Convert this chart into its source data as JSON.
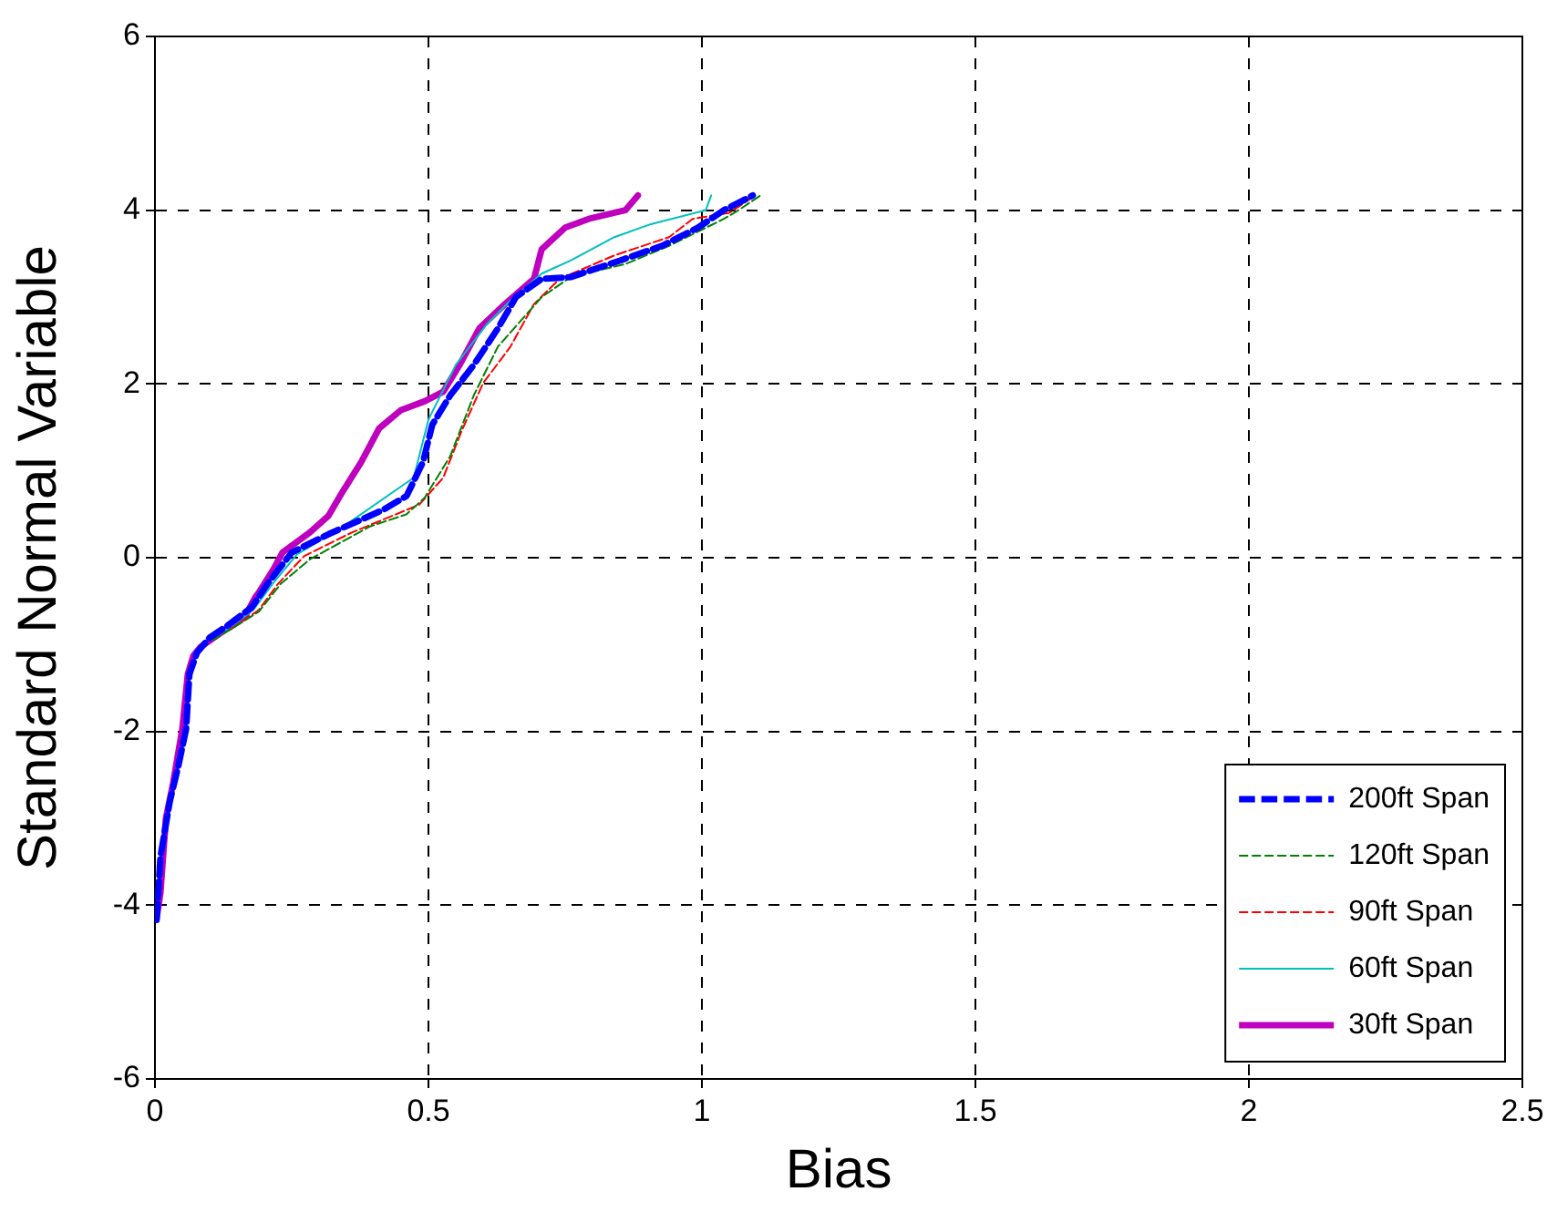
{
  "chart_data": {
    "type": "line",
    "xlabel": "Bias",
    "ylabel": "Standard Normal Variable",
    "xlim": [
      0,
      2.5
    ],
    "xticks": [
      0,
      0.5,
      1,
      1.5,
      2,
      2.5
    ],
    "ylim": [
      -6,
      6
    ],
    "yticks": [
      -6,
      -4,
      -2,
      0,
      2,
      4,
      6
    ],
    "grid": true,
    "legend": "bottom right",
    "marker": "none",
    "series": [
      {
        "name": "200ft Span",
        "color": "#0000ff",
        "line_style": "dashed",
        "x": [
          0.003,
          0.01,
          0.027,
          0.043,
          0.057,
          0.063,
          0.077,
          0.1,
          0.133,
          0.177,
          0.207,
          0.25,
          0.317,
          0.417,
          0.46,
          0.49,
          0.507,
          0.54,
          0.583,
          0.627,
          0.66,
          0.707,
          0.76,
          0.85,
          0.927,
          0.993,
          1.04,
          1.093
        ],
        "values": [
          -4.17,
          -3.44,
          -2.81,
          -2.39,
          -1.97,
          -1.34,
          -1.09,
          -0.92,
          -0.78,
          -0.57,
          -0.29,
          0.06,
          0.27,
          0.55,
          0.71,
          1.1,
          1.53,
          1.87,
          2.22,
          2.64,
          3.0,
          3.21,
          3.23,
          3.42,
          3.59,
          3.8,
          4.0,
          4.17
        ]
      },
      {
        "name": "120ft Span",
        "color": "#008000",
        "line_style": "dashed",
        "x": [
          0.105,
          0.14,
          0.19,
          0.23,
          0.283,
          0.393,
          0.46,
          0.493,
          0.54,
          0.583,
          0.627,
          0.707,
          0.76,
          0.86,
          0.94,
          1.04,
          1.067,
          1.107
        ],
        "values": [
          -0.95,
          -0.82,
          -0.62,
          -0.3,
          -0.02,
          0.36,
          0.5,
          0.69,
          1.17,
          1.87,
          2.43,
          3.0,
          3.23,
          3.38,
          3.59,
          3.9,
          4.0,
          4.17
        ]
      },
      {
        "name": "90ft Span",
        "color": "#ff0000",
        "line_style": "dashed",
        "x": [
          0.14,
          0.19,
          0.225,
          0.273,
          0.36,
          0.483,
          0.527,
          0.56,
          0.6,
          0.65,
          0.693,
          0.74,
          0.84,
          0.94,
          0.983,
          1.05,
          1.093
        ],
        "values": [
          -0.82,
          -0.6,
          -0.3,
          0.02,
          0.29,
          0.61,
          0.92,
          1.45,
          2.01,
          2.43,
          2.92,
          3.21,
          3.48,
          3.69,
          3.9,
          3.97,
          4.15
        ]
      },
      {
        "name": "60ft Span",
        "color": "#00bfbf",
        "line_style": "solid",
        "x": [
          0.102,
          0.137,
          0.18,
          0.215,
          0.26,
          0.34,
          0.473,
          0.5,
          0.55,
          0.607,
          0.65,
          0.707,
          0.76,
          0.84,
          0.907,
          1.007,
          1.017
        ],
        "values": [
          -0.94,
          -0.8,
          -0.6,
          -0.3,
          0.04,
          0.34,
          0.92,
          1.59,
          2.22,
          2.69,
          2.96,
          3.27,
          3.42,
          3.69,
          3.84,
          4.0,
          4.17
        ]
      },
      {
        "name": "30ft Span",
        "color": "#bf00bf",
        "line_style": "solid",
        "x": [
          0.003,
          0.01,
          0.02,
          0.033,
          0.05,
          0.06,
          0.07,
          0.083,
          0.117,
          0.167,
          0.183,
          0.19,
          0.217,
          0.233,
          0.283,
          0.317,
          0.343,
          0.377,
          0.41,
          0.45,
          0.493,
          0.527,
          0.557,
          0.593,
          0.64,
          0.693,
          0.707,
          0.75,
          0.793,
          0.86,
          0.883
        ],
        "values": [
          -4.15,
          -3.86,
          -3.0,
          -2.6,
          -1.97,
          -1.34,
          -1.13,
          -1.03,
          -0.88,
          -0.65,
          -0.46,
          -0.4,
          -0.13,
          0.06,
          0.29,
          0.48,
          0.76,
          1.1,
          1.49,
          1.7,
          1.8,
          1.91,
          2.22,
          2.64,
          2.92,
          3.21,
          3.55,
          3.8,
          3.9,
          4.0,
          4.17
        ]
      }
    ]
  }
}
